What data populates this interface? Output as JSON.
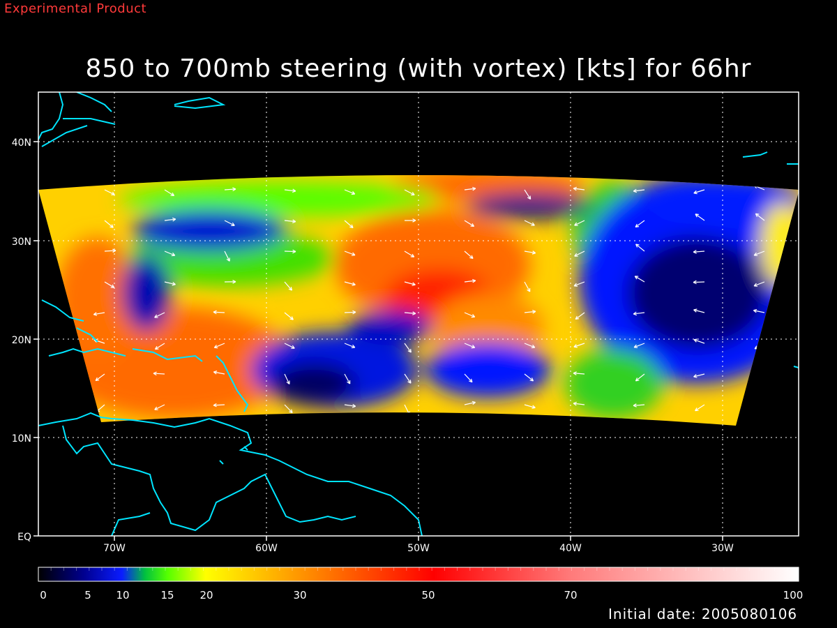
{
  "header": {
    "experimental_label": "Experimental Product",
    "title": "850 to 700mb steering (with vortex) [kts] for 66hr"
  },
  "map": {
    "lat_ticks": [
      "40N",
      "30N",
      "20N",
      "10N",
      "EQ"
    ],
    "lon_ticks": [
      "70W",
      "60W",
      "50W",
      "40W",
      "30W"
    ],
    "lon_range": [
      "75W",
      "25W"
    ],
    "lat_range": [
      "EQ",
      "45N"
    ],
    "grid": true,
    "coastline_color": "#00e5ff"
  },
  "colorbar": {
    "tick_labels": [
      "0",
      "5",
      "10",
      "15",
      "20",
      "30",
      "50",
      "70",
      "100"
    ],
    "tick_values": [
      0,
      5,
      10,
      15,
      20,
      30,
      50,
      70,
      100
    ],
    "stops": [
      {
        "v": 0,
        "color": "#000000"
      },
      {
        "v": 5,
        "color": "#000090"
      },
      {
        "v": 10,
        "color": "#0a1cff"
      },
      {
        "v": 12,
        "color": "#00d030"
      },
      {
        "v": 15,
        "color": "#55ff00"
      },
      {
        "v": 20,
        "color": "#ffff00"
      },
      {
        "v": 30,
        "color": "#ff8a00"
      },
      {
        "v": 50,
        "color": "#ff0000"
      },
      {
        "v": 70,
        "color": "#ff7070"
      },
      {
        "v": 100,
        "color": "#ffffff"
      }
    ]
  },
  "footer": {
    "initial_date": "Initial date: 2005080106"
  }
}
